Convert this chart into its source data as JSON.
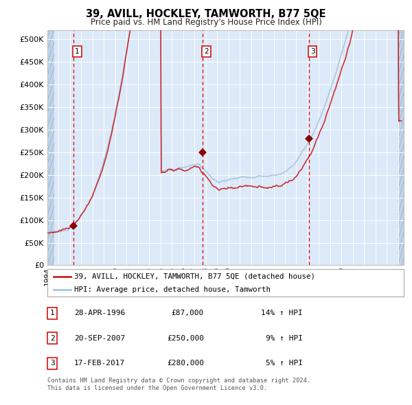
{
  "title": "39, AVILL, HOCKLEY, TAMWORTH, B77 5QE",
  "subtitle": "Price paid vs. HM Land Registry's House Price Index (HPI)",
  "xlim": [
    1994.0,
    2025.5
  ],
  "ylim": [
    0,
    520000
  ],
  "yticks": [
    0,
    50000,
    100000,
    150000,
    200000,
    250000,
    300000,
    350000,
    400000,
    450000,
    500000
  ],
  "ytick_labels": [
    "£0",
    "£50K",
    "£100K",
    "£150K",
    "£200K",
    "£250K",
    "£300K",
    "£350K",
    "£400K",
    "£450K",
    "£500K"
  ],
  "bg_color": "#dce9f8",
  "hpi_line_color": "#a8c4de",
  "price_line_color": "#cc2222",
  "sale_marker_color": "#880000",
  "dashed_line_color": "#dd0000",
  "transactions": [
    {
      "date_year": 1996.32,
      "price": 87000,
      "label": "1"
    },
    {
      "date_year": 2007.72,
      "price": 250000,
      "label": "2"
    },
    {
      "date_year": 2017.12,
      "price": 280000,
      "label": "3"
    }
  ],
  "legend_entry1": "39, AVILL, HOCKLEY, TAMWORTH, B77 5QE (detached house)",
  "legend_entry2": "HPI: Average price, detached house, Tamworth",
  "table_rows": [
    [
      "1",
      "28-APR-1996",
      "£87,000",
      "14% ↑ HPI"
    ],
    [
      "2",
      "20-SEP-2007",
      "£250,000",
      "9% ↑ HPI"
    ],
    [
      "3",
      "17-FEB-2017",
      "£280,000",
      "5% ↑ HPI"
    ]
  ],
  "footer": "Contains HM Land Registry data © Crown copyright and database right 2024.\nThis data is licensed under the Open Government Licence v3.0."
}
